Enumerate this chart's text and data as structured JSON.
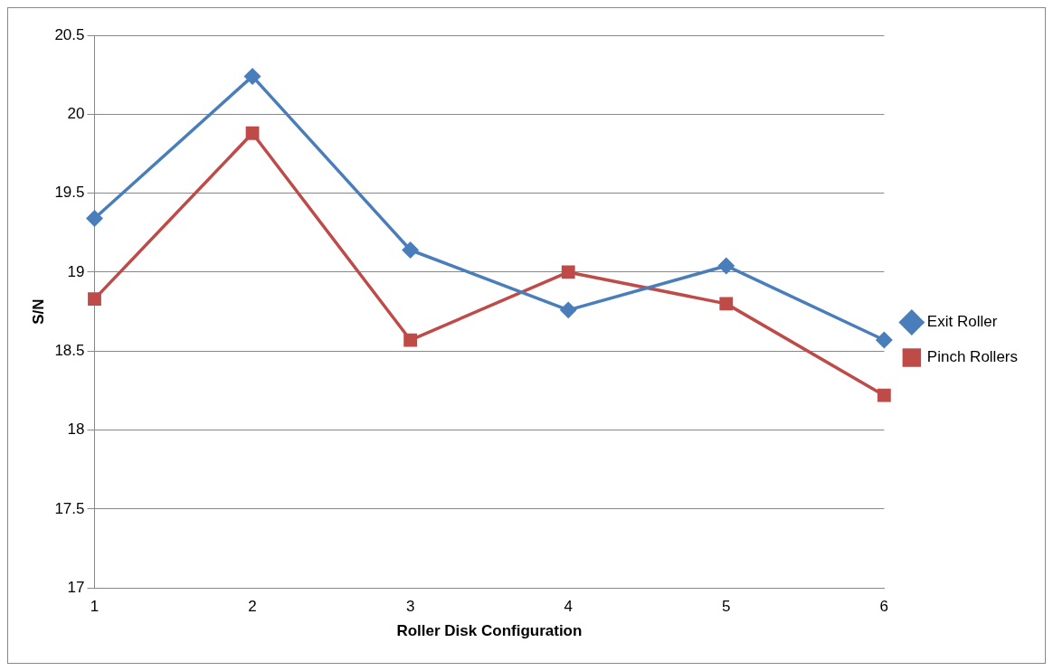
{
  "chart_data": {
    "type": "line",
    "xlabel": "Roller Disk Configuration",
    "ylabel": "S/N",
    "categories": [
      "1",
      "2",
      "3",
      "4",
      "5",
      "6"
    ],
    "series": [
      {
        "name": "Exit Roller",
        "color": "#4a7ebb",
        "marker": "diamond",
        "values": [
          19.34,
          20.24,
          19.14,
          18.76,
          19.04,
          18.57
        ]
      },
      {
        "name": "Pinch Rollers",
        "color": "#be4b48",
        "marker": "square",
        "values": [
          18.83,
          19.88,
          18.57,
          19.0,
          18.8,
          18.22
        ]
      }
    ],
    "ylim": [
      17,
      20.5
    ],
    "yticks": [
      17,
      17.5,
      18,
      18.5,
      19,
      19.5,
      20,
      20.5
    ],
    "grid": "y",
    "legend": "right",
    "line_style": "solid"
  }
}
